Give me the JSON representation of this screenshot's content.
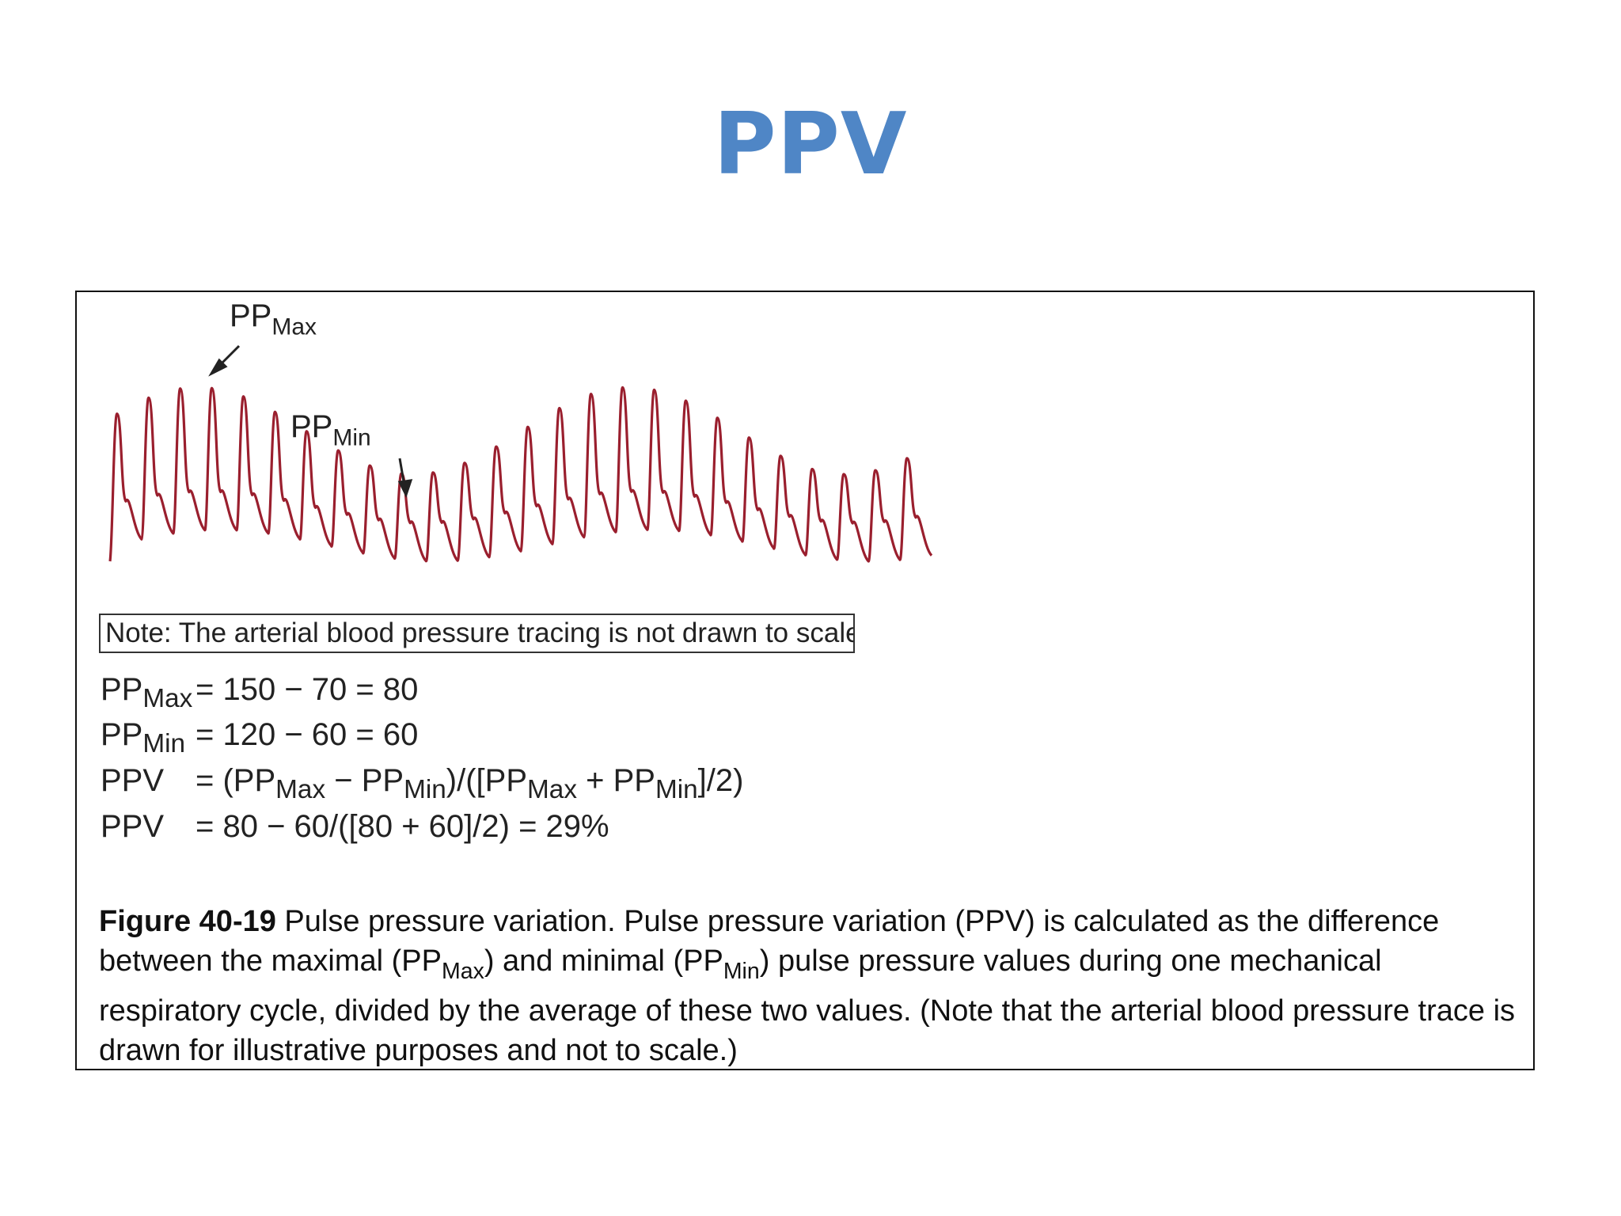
{
  "slide": {
    "title": "PPV"
  },
  "figure": {
    "trace_color": "#9a1f2e",
    "label_max": {
      "base": "PP",
      "sub": "Max"
    },
    "label_min": {
      "base": "PP",
      "sub": "Min"
    },
    "note": "Note: The arterial blood pressure tracing is not drawn to scale",
    "equations": [
      {
        "lhs_base": "PP",
        "lhs_sub": "Max",
        "rhs": "= 150 − 70 = 80"
      },
      {
        "lhs_base": "PP",
        "lhs_sub": "Min",
        "rhs": "= 120 − 60 = 60"
      },
      {
        "lhs_base": "PPV",
        "lhs_sub": "",
        "rhs_parts": [
          "= (PP",
          "Max",
          " − PP",
          "Min",
          ")/([PP",
          "Max",
          " + PP",
          "Min",
          "]/2)"
        ]
      },
      {
        "lhs_base": "PPV",
        "lhs_sub": "",
        "rhs": "= 80 − 60/([80 + 60]/2) = 29%"
      }
    ],
    "caption": {
      "label": "Figure 40-19",
      "t1": " Pulse pressure variation. Pulse pressure variation (PPV) is calculated as the difference between the maximal (PP",
      "s1": "Max",
      "t2": ") and minimal (PP",
      "s2": "Min",
      "t3": ") pulse pressure values during one mechanical respiratory cycle, divided by the average of these two values. (Note that the arterial blood pressure trace is drawn for illustrative purposes and not to scale.)"
    }
  }
}
